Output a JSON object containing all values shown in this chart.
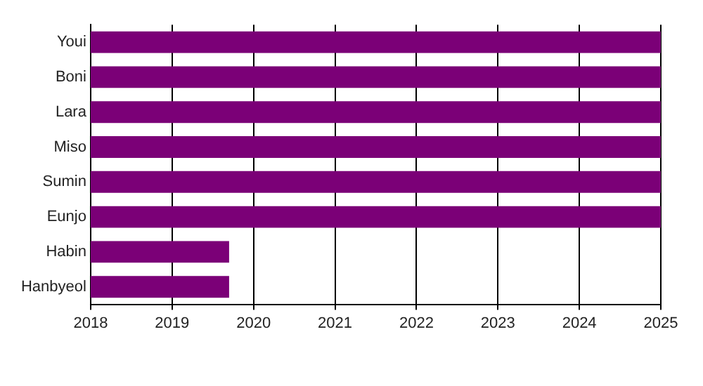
{
  "chart_data": {
    "type": "bar",
    "orientation": "horizontal",
    "categories": [
      "Youi",
      "Boni",
      "Lara",
      "Miso",
      "Sumin",
      "Eunjo",
      "Habin",
      "Hanbyeol"
    ],
    "base": [
      2018,
      2018,
      2018,
      2018,
      2018,
      2018,
      2018,
      2018
    ],
    "values": [
      7,
      7,
      7,
      7,
      7,
      7,
      1.7,
      1.7
    ],
    "color": "#7b0077",
    "xlim": [
      2018,
      2025
    ],
    "xticks": [
      2018,
      2019,
      2020,
      2021,
      2022,
      2023,
      2024,
      2025
    ],
    "grid": "x",
    "legend": false
  }
}
